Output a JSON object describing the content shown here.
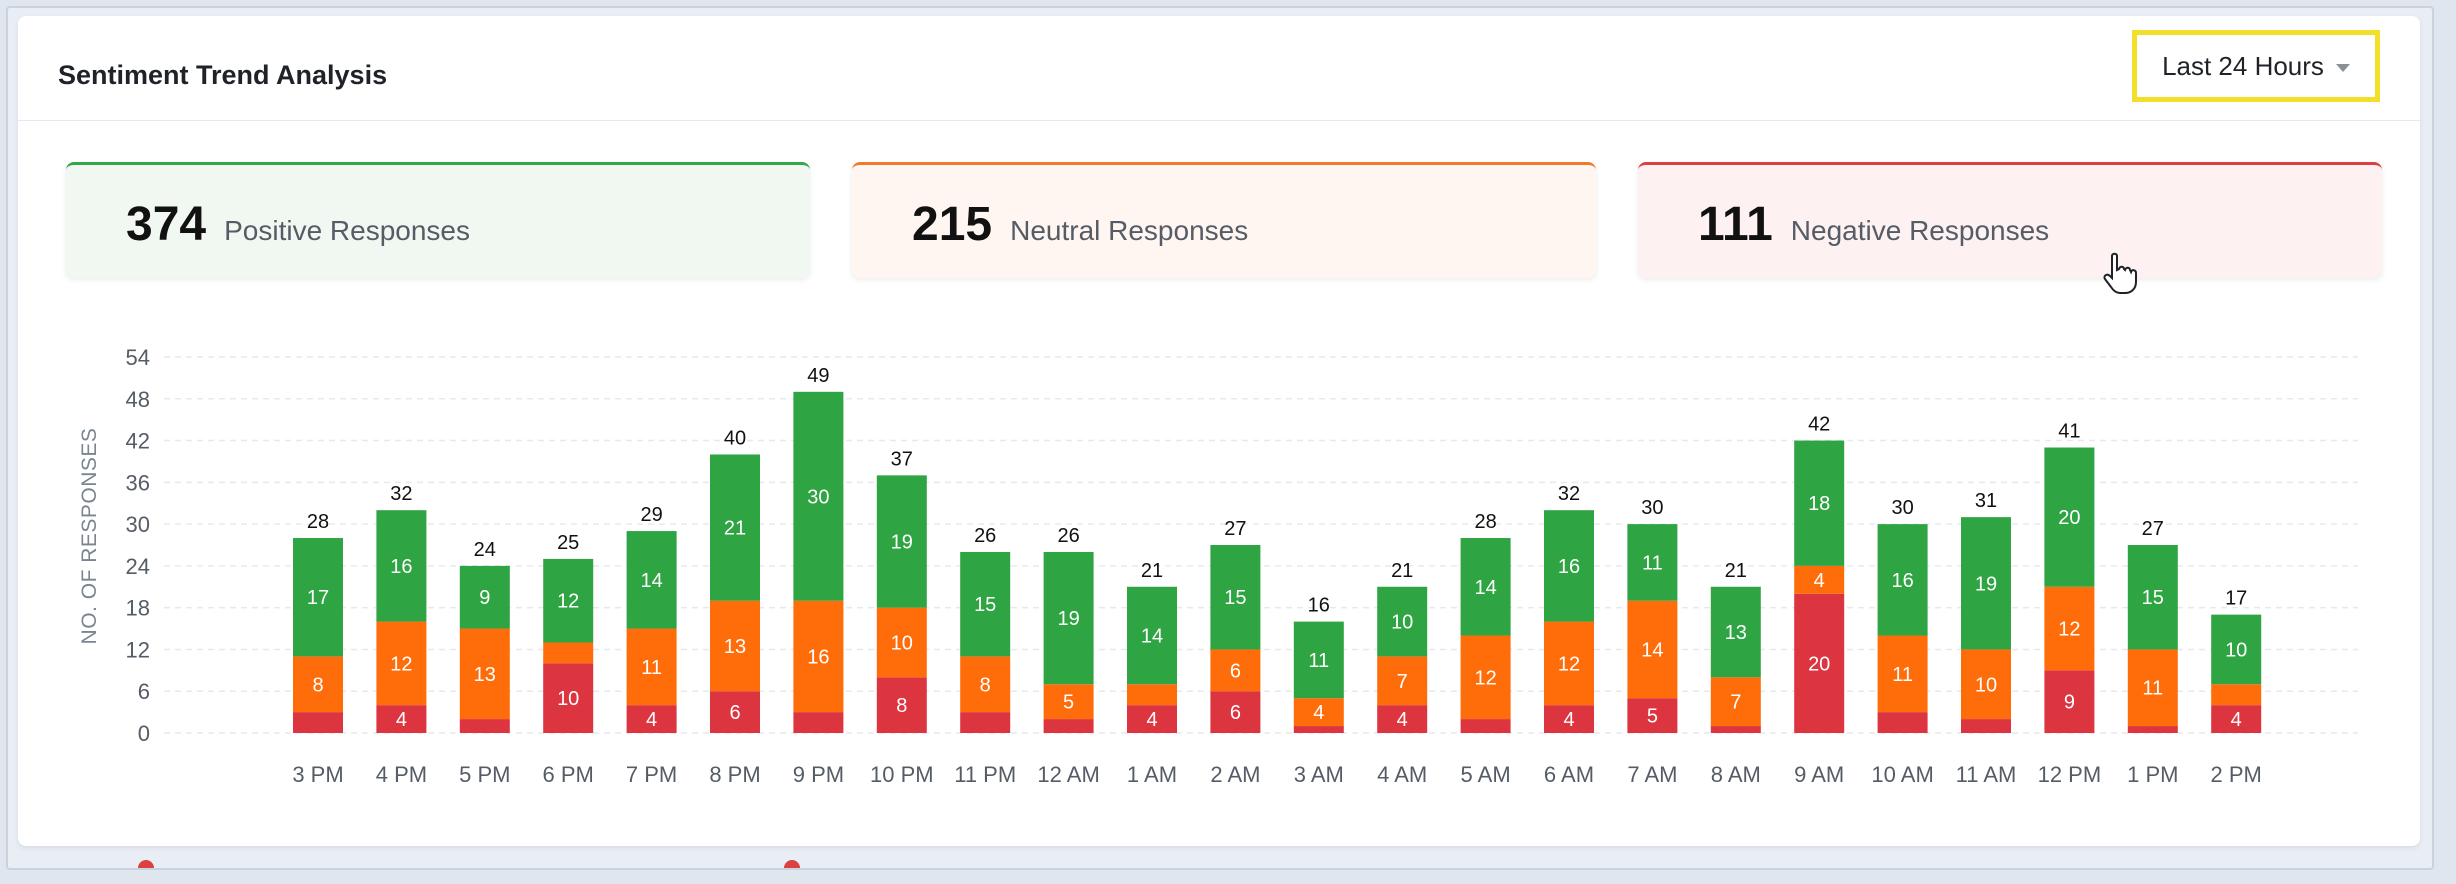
{
  "header": {
    "title": "Sentiment Trend Analysis",
    "range_label": "Last 24 Hours"
  },
  "stats": {
    "positive": {
      "value": "374",
      "label": "Positive Responses"
    },
    "neutral": {
      "value": "215",
      "label": "Neutral Responses"
    },
    "negative": {
      "value": "111",
      "label": "Negative Responses"
    }
  },
  "colors": {
    "positive": "#2ea443",
    "neutral": "#ff6d0a",
    "negative": "#dc3540"
  },
  "icons": {
    "range_caret": "caret-down-icon",
    "pointer": "hand-pointer-icon"
  },
  "chart_data": {
    "type": "bar",
    "stacked": true,
    "ylabel": "NO. OF RESPONSES",
    "ylim": [
      0,
      54
    ],
    "yticks": [
      0,
      6,
      12,
      18,
      24,
      30,
      36,
      42,
      48,
      54
    ],
    "grid": true,
    "categories": [
      "3 PM",
      "4 PM",
      "5 PM",
      "6 PM",
      "7 PM",
      "8 PM",
      "9 PM",
      "10 PM",
      "11 PM",
      "12 AM",
      "1 AM",
      "2 AM",
      "3 AM",
      "4 AM",
      "5 AM",
      "6 AM",
      "7 AM",
      "8 AM",
      "9 AM",
      "10 AM",
      "11 AM",
      "12 PM",
      "1 PM",
      "2 PM"
    ],
    "totals": [
      28,
      32,
      24,
      25,
      29,
      40,
      49,
      37,
      26,
      26,
      21,
      27,
      16,
      21,
      28,
      32,
      30,
      21,
      42,
      30,
      31,
      41,
      27,
      17
    ],
    "series": [
      {
        "key": "negative",
        "values": [
          3,
          4,
          2,
          10,
          4,
          6,
          3,
          8,
          3,
          2,
          4,
          6,
          1,
          4,
          2,
          4,
          5,
          1,
          20,
          3,
          2,
          9,
          1,
          4
        ]
      },
      {
        "key": "neutral",
        "values": [
          8,
          12,
          13,
          3,
          11,
          13,
          16,
          10,
          8,
          5,
          3,
          6,
          4,
          7,
          12,
          12,
          14,
          7,
          4,
          11,
          10,
          12,
          11,
          3
        ]
      },
      {
        "key": "positive",
        "values": [
          17,
          16,
          9,
          12,
          14,
          21,
          30,
          19,
          15,
          19,
          14,
          15,
          11,
          10,
          14,
          16,
          11,
          13,
          18,
          16,
          19,
          20,
          15,
          10
        ]
      }
    ]
  }
}
